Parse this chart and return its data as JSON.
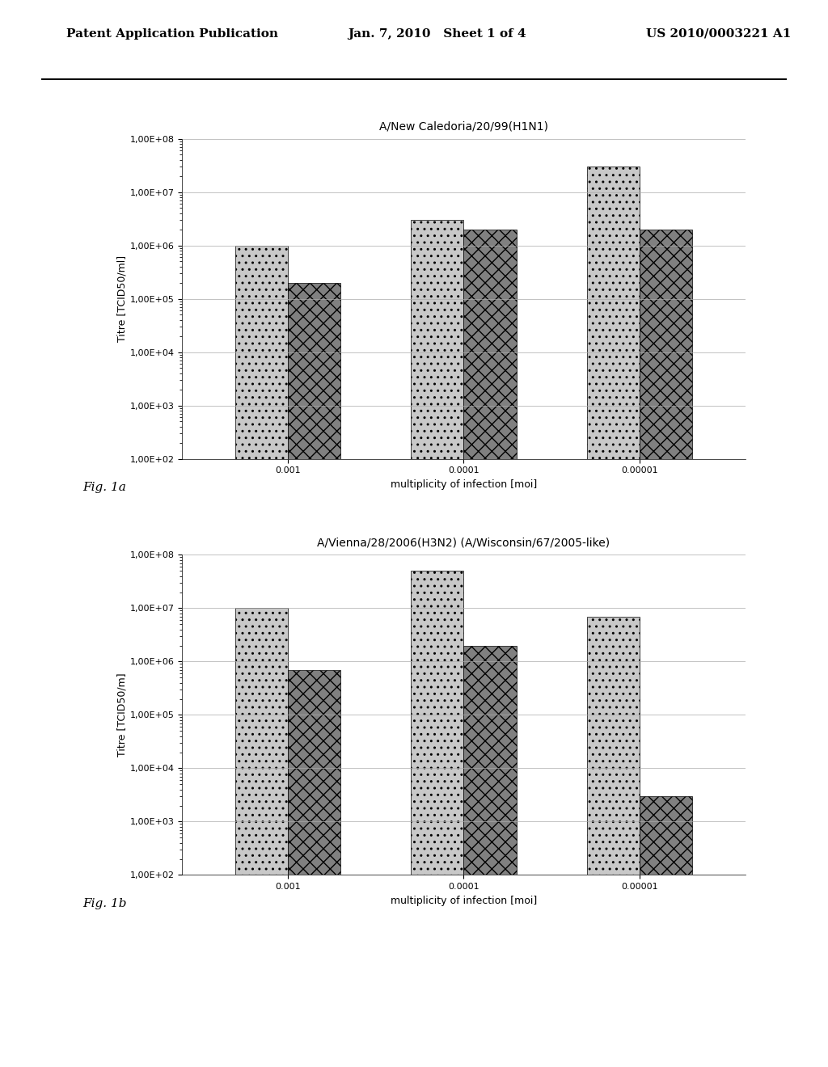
{
  "fig1a": {
    "title": "A/New Caledoria/20/99(H1N1)",
    "ylabel": "Titre [TCID50/ml]",
    "xlabel": "multiplicity of infection [moi]",
    "categories": [
      "0.001",
      "0.0001",
      "0.00001"
    ],
    "bar1_values": [
      1000000.0,
      3000000.0,
      30000000.0
    ],
    "bar2_values": [
      200000.0,
      2000000.0,
      2000000.0
    ],
    "bar1_color": "#c8c8c8",
    "bar2_color": "#808080",
    "bar1_hatch": "..",
    "bar2_hatch": "xx",
    "ylim_min": 100.0,
    "ylim_max": 100000000.0,
    "fig_label": "Fig. 1a"
  },
  "fig1b": {
    "title": "A/Vienna/28/2006(H3N2) (A/Wisconsin/67/2005-like)",
    "ylabel": "Titre [TCID50/m]",
    "xlabel": "multiplicity of infection [moi]",
    "categories": [
      "0.001",
      "0.0001",
      "0.00001"
    ],
    "bar1_values": [
      10000000.0,
      50000000.0,
      7000000.0
    ],
    "bar2_values": [
      700000.0,
      2000000.0,
      3000.0
    ],
    "bar1_color": "#c8c8c8",
    "bar2_color": "#808080",
    "bar1_hatch": "..",
    "bar2_hatch": "xx",
    "ylim_min": 100.0,
    "ylim_max": 100000000.0,
    "fig_label": "Fig. 1b"
  },
  "header_left": "Patent Application Publication",
  "header_center": "Jan. 7, 2010   Sheet 1 of 4",
  "header_right": "US 2010/0003221 A1",
  "background_color": "#ffffff",
  "bar_width": 0.3
}
